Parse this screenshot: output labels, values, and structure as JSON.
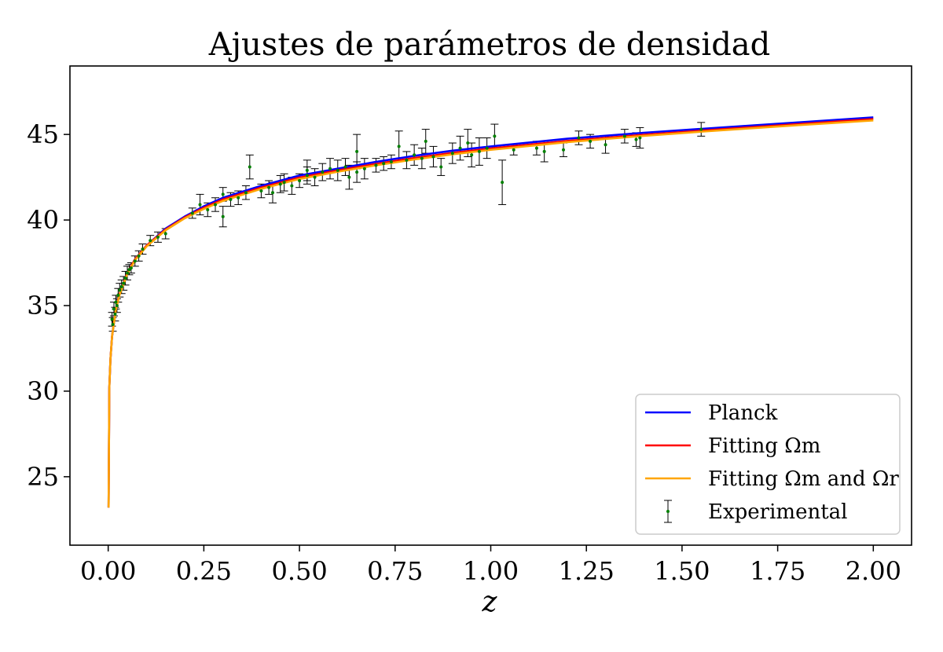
{
  "chart_data": {
    "type": "line",
    "title": "Ajustes de parámetros de densidad",
    "xlabel": "z",
    "ylabel": "",
    "xlim": [
      -0.1,
      2.1
    ],
    "ylim": [
      21.0,
      49.0
    ],
    "x_ticks": [
      0.0,
      0.25,
      0.5,
      0.75,
      1.0,
      1.25,
      1.5,
      1.75,
      2.0
    ],
    "x_tick_labels": [
      "0.00",
      "0.25",
      "0.50",
      "0.75",
      "1.00",
      "1.25",
      "1.50",
      "1.75",
      "2.00"
    ],
    "y_ticks": [
      25,
      30,
      35,
      40,
      45
    ],
    "y_tick_labels": [
      "25",
      "30",
      "35",
      "40",
      "45"
    ],
    "grid": false,
    "legend_position": "lower-right",
    "legend": [
      {
        "label": "Planck",
        "kind": "line",
        "color": "#0000ff"
      },
      {
        "label": "Fitting Ωm",
        "kind": "line",
        "color": "#ff0000"
      },
      {
        "label": "Fitting Ωm and Ωr",
        "kind": "line",
        "color": "#ffa500"
      },
      {
        "label": "Experimental",
        "kind": "errorbar",
        "color": "#000000",
        "marker_color": "#008000"
      }
    ],
    "series": [
      {
        "name": "Planck",
        "color": "#0000ff",
        "x": [
          0.001,
          0.003,
          0.006,
          0.01,
          0.02,
          0.03,
          0.05,
          0.07,
          0.1,
          0.15,
          0.2,
          0.25,
          0.3,
          0.4,
          0.5,
          0.6,
          0.7,
          0.8,
          0.9,
          1.0,
          1.2,
          1.4,
          1.6,
          1.8,
          2.0
        ],
        "y": [
          23.2,
          30.2,
          31.9,
          33.2,
          34.8,
          35.7,
          36.9,
          37.7,
          38.5,
          39.5,
          40.2,
          40.8,
          41.3,
          42.0,
          42.6,
          43.0,
          43.4,
          43.75,
          44.05,
          44.3,
          44.75,
          45.1,
          45.4,
          45.7,
          46.0
        ]
      },
      {
        "name": "Fitting Ωm",
        "color": "#ff0000",
        "x": [
          0.001,
          0.003,
          0.006,
          0.01,
          0.02,
          0.03,
          0.05,
          0.07,
          0.1,
          0.15,
          0.2,
          0.25,
          0.3,
          0.4,
          0.5,
          0.6,
          0.7,
          0.8,
          0.9,
          1.0,
          1.2,
          1.4,
          1.6,
          1.8,
          2.0
        ],
        "y": [
          23.2,
          30.2,
          31.9,
          33.2,
          34.8,
          35.7,
          36.9,
          37.7,
          38.5,
          39.45,
          40.15,
          40.72,
          41.2,
          41.9,
          42.48,
          42.9,
          43.28,
          43.62,
          43.92,
          44.18,
          44.62,
          44.98,
          45.3,
          45.6,
          45.9
        ]
      },
      {
        "name": "Fitting Ωm and Ωr",
        "color": "#ffa500",
        "x": [
          0.001,
          0.003,
          0.006,
          0.01,
          0.02,
          0.03,
          0.05,
          0.07,
          0.1,
          0.15,
          0.2,
          0.25,
          0.3,
          0.4,
          0.5,
          0.6,
          0.7,
          0.8,
          0.9,
          1.0,
          1.2,
          1.4,
          1.6,
          1.8,
          2.0
        ],
        "y": [
          23.2,
          30.2,
          31.9,
          33.2,
          34.75,
          35.65,
          36.85,
          37.65,
          38.45,
          39.4,
          40.1,
          40.65,
          41.12,
          41.82,
          42.4,
          42.82,
          43.2,
          43.54,
          43.84,
          44.1,
          44.55,
          44.92,
          45.24,
          45.54,
          45.82
        ]
      }
    ],
    "experimental": {
      "name": "Experimental",
      "x": [
        0.01,
        0.012,
        0.015,
        0.018,
        0.02,
        0.023,
        0.026,
        0.03,
        0.035,
        0.04,
        0.045,
        0.05,
        0.055,
        0.06,
        0.07,
        0.08,
        0.09,
        0.11,
        0.13,
        0.15,
        0.22,
        0.24,
        0.26,
        0.28,
        0.3,
        0.3,
        0.32,
        0.34,
        0.36,
        0.37,
        0.4,
        0.42,
        0.43,
        0.45,
        0.46,
        0.48,
        0.5,
        0.52,
        0.52,
        0.54,
        0.56,
        0.58,
        0.6,
        0.62,
        0.63,
        0.65,
        0.65,
        0.67,
        0.7,
        0.72,
        0.74,
        0.76,
        0.78,
        0.8,
        0.82,
        0.83,
        0.85,
        0.87,
        0.9,
        0.92,
        0.94,
        0.95,
        0.97,
        0.99,
        1.01,
        1.03,
        1.06,
        1.12,
        1.14,
        1.19,
        1.23,
        1.26,
        1.3,
        1.35,
        1.38,
        1.39,
        1.55
      ],
      "y": [
        34.2,
        33.9,
        34.8,
        34.5,
        35.2,
        35.0,
        35.6,
        35.9,
        36.1,
        36.3,
        36.6,
        36.9,
        37.1,
        37.2,
        37.6,
        37.9,
        38.3,
        38.8,
        39.0,
        39.2,
        40.4,
        40.9,
        40.6,
        40.9,
        40.2,
        41.5,
        41.2,
        41.3,
        41.6,
        43.1,
        41.7,
        41.9,
        41.6,
        42.1,
        42.2,
        42.0,
        42.3,
        42.6,
        42.9,
        42.5,
        42.8,
        43.0,
        42.9,
        43.1,
        42.5,
        44.0,
        42.8,
        43.0,
        43.2,
        43.3,
        43.4,
        44.3,
        43.5,
        43.8,
        43.6,
        44.6,
        43.7,
        43.1,
        43.9,
        44.2,
        44.5,
        43.8,
        44.0,
        44.2,
        44.9,
        42.2,
        44.1,
        44.2,
        44.0,
        44.1,
        44.8,
        44.6,
        44.4,
        44.9,
        44.7,
        44.8,
        45.3
      ],
      "err": [
        0.4,
        0.4,
        0.4,
        0.4,
        0.4,
        0.4,
        0.4,
        0.4,
        0.4,
        0.4,
        0.4,
        0.4,
        0.3,
        0.3,
        0.3,
        0.3,
        0.3,
        0.3,
        0.3,
        0.3,
        0.3,
        0.6,
        0.4,
        0.4,
        0.6,
        0.4,
        0.4,
        0.4,
        0.4,
        0.7,
        0.4,
        0.4,
        0.6,
        0.5,
        0.5,
        0.5,
        0.4,
        0.5,
        0.6,
        0.5,
        0.5,
        0.6,
        0.6,
        0.5,
        0.7,
        1.0,
        0.6,
        0.6,
        0.4,
        0.4,
        0.4,
        0.9,
        0.5,
        0.6,
        0.6,
        0.7,
        0.6,
        0.5,
        0.6,
        0.7,
        0.8,
        0.7,
        0.8,
        0.6,
        0.7,
        1.3,
        0.3,
        0.4,
        0.6,
        0.4,
        0.4,
        0.4,
        0.5,
        0.4,
        0.4,
        0.6,
        0.4
      ]
    }
  }
}
